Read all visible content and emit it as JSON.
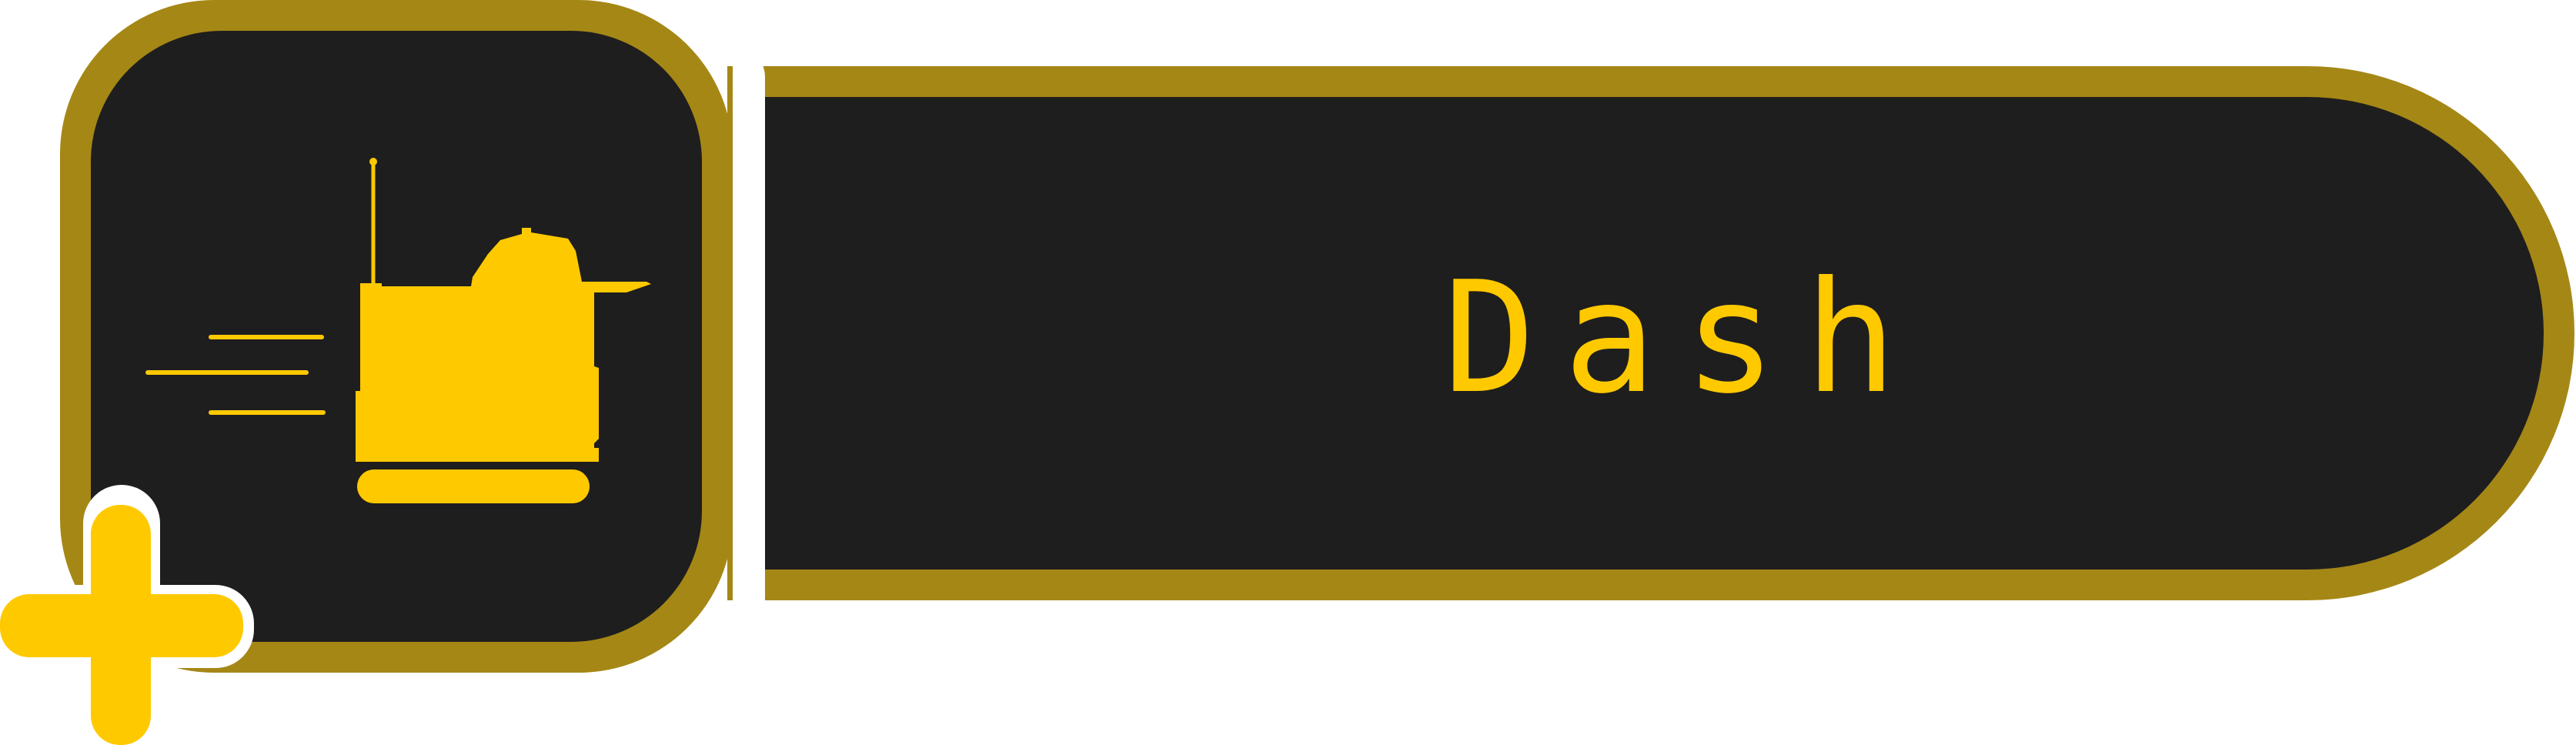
{
  "skill": {
    "name": "Dash",
    "icon": "dashing-tracked-robot-icon",
    "badge_icon": "plus-icon"
  },
  "colors": {
    "accent": "#ffc900",
    "frame": "#a58716",
    "panel": "#1e1e1e",
    "outline": "#ffffff"
  }
}
